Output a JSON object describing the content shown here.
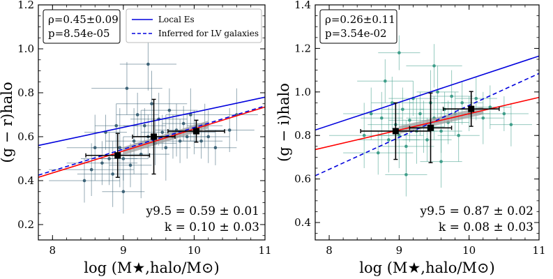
{
  "chart_data": [
    {
      "type": "scatter",
      "panel": "left",
      "xlabel": "log (M★,halo/M⊙)",
      "ylabel": "(g − r)halo",
      "xlim": [
        7.8,
        11.0
      ],
      "ylim": [
        0.13,
        1.2
      ],
      "xticks": [
        8,
        9,
        10,
        11
      ],
      "yticks": [
        0.2,
        0.4,
        0.6,
        0.8,
        1.0,
        1.2
      ],
      "xtick_labels": [
        "8",
        "9",
        "10",
        "11"
      ],
      "ytick_labels": [
        "0.2",
        "0.4",
        "0.6",
        "0.8",
        "1.0",
        "1.2"
      ],
      "stats_box": [
        "ρ=0.45±0.09",
        "p=8.54e-05"
      ],
      "legend": {
        "placement": "top-center",
        "entries": [
          "Local Es",
          "Inferred for LV galaxies"
        ]
      },
      "annotation": [
        "y9.5 = 0.59 ± 0.01",
        "k = 0.10 ± 0.03"
      ],
      "lines": [
        {
          "name": "Local Es",
          "color": "#0000dd",
          "style": "solid",
          "x": [
            7.8,
            11.0
          ],
          "y": [
            0.56,
            0.78
          ]
        },
        {
          "name": "Inferred for LV galaxies",
          "color": "#0000dd",
          "style": "dashed",
          "x": [
            7.8,
            11.0
          ],
          "y": [
            0.425,
            0.74
          ]
        },
        {
          "name": "fit",
          "color": "#ff0000",
          "style": "solid",
          "x": [
            7.8,
            11.0
          ],
          "y": [
            0.415,
            0.735
          ]
        }
      ],
      "point_color": "#3e6478",
      "points": [
        {
          "x": 8.45,
          "y": 0.4,
          "xerr": 0.5,
          "yerr": 0.1
        },
        {
          "x": 8.55,
          "y": 0.45,
          "xerr": 0.6,
          "yerr": 0.12
        },
        {
          "x": 8.6,
          "y": 0.55,
          "xerr": 0.4,
          "yerr": 0.15
        },
        {
          "x": 8.7,
          "y": 0.48,
          "xerr": 0.5,
          "yerr": 0.1
        },
        {
          "x": 8.75,
          "y": 0.62,
          "xerr": 0.3,
          "yerr": 0.08
        },
        {
          "x": 8.8,
          "y": 0.5,
          "xerr": 0.4,
          "yerr": 0.12
        },
        {
          "x": 8.85,
          "y": 0.43,
          "xerr": 0.5,
          "yerr": 0.15
        },
        {
          "x": 8.9,
          "y": 0.65,
          "xerr": 0.3,
          "yerr": 0.1
        },
        {
          "x": 8.95,
          "y": 0.55,
          "xerr": 0.4,
          "yerr": 0.18
        },
        {
          "x": 9.0,
          "y": 0.5,
          "xerr": 0.35,
          "yerr": 0.1
        },
        {
          "x": 9.05,
          "y": 0.82,
          "xerr": 0.5,
          "yerr": 0.12
        },
        {
          "x": 9.1,
          "y": 0.47,
          "xerr": 0.3,
          "yerr": 0.1
        },
        {
          "x": 9.15,
          "y": 0.58,
          "xerr": 0.4,
          "yerr": 0.15
        },
        {
          "x": 9.2,
          "y": 0.7,
          "xerr": 0.3,
          "yerr": 0.1
        },
        {
          "x": 9.25,
          "y": 0.52,
          "xerr": 0.4,
          "yerr": 0.2
        },
        {
          "x": 9.3,
          "y": 0.65,
          "xerr": 0.3,
          "yerr": 0.08
        },
        {
          "x": 9.35,
          "y": 0.6,
          "xerr": 0.35,
          "yerr": 0.1
        },
        {
          "x": 9.4,
          "y": 0.75,
          "xerr": 0.5,
          "yerr": 0.15
        },
        {
          "x": 9.45,
          "y": 0.57,
          "xerr": 0.3,
          "yerr": 0.1
        },
        {
          "x": 9.5,
          "y": 0.68,
          "xerr": 0.4,
          "yerr": 0.12
        },
        {
          "x": 9.55,
          "y": 0.62,
          "xerr": 0.3,
          "yerr": 0.08
        },
        {
          "x": 9.6,
          "y": 0.55,
          "xerr": 0.35,
          "yerr": 0.15
        },
        {
          "x": 9.65,
          "y": 0.72,
          "xerr": 0.4,
          "yerr": 0.1
        },
        {
          "x": 9.7,
          "y": 0.6,
          "xerr": 0.3,
          "yerr": 0.1
        },
        {
          "x": 9.75,
          "y": 0.63,
          "xerr": 0.3,
          "yerr": 0.12
        },
        {
          "x": 9.8,
          "y": 0.58,
          "xerr": 0.25,
          "yerr": 0.1
        },
        {
          "x": 9.85,
          "y": 0.66,
          "xerr": 0.3,
          "yerr": 0.08
        },
        {
          "x": 9.9,
          "y": 0.6,
          "xerr": 0.3,
          "yerr": 0.1
        },
        {
          "x": 9.95,
          "y": 0.7,
          "xerr": 0.35,
          "yerr": 0.12
        },
        {
          "x": 10.0,
          "y": 0.62,
          "xerr": 0.3,
          "yerr": 0.1
        },
        {
          "x": 10.1,
          "y": 0.58,
          "xerr": 0.3,
          "yerr": 0.08
        },
        {
          "x": 10.15,
          "y": 0.65,
          "xerr": 0.25,
          "yerr": 0.1
        },
        {
          "x": 10.2,
          "y": 0.6,
          "xerr": 0.3,
          "yerr": 0.12
        },
        {
          "x": 10.3,
          "y": 0.55,
          "xerr": 0.3,
          "yerr": 0.08
        },
        {
          "x": 10.5,
          "y": 0.63,
          "xerr": 0.35,
          "yerr": 0.1
        },
        {
          "x": 10.6,
          "y": 0.7,
          "xerr": 0.3,
          "yerr": 0.12
        },
        {
          "x": 9.35,
          "y": 0.93,
          "xerr": 0.4,
          "yerr": 0.12
        },
        {
          "x": 9.0,
          "y": 0.35,
          "xerr": 0.3,
          "yerr": 0.1
        }
      ],
      "binned": [
        {
          "x": 8.92,
          "y": 0.515,
          "xerr": 0.45,
          "yerr": 0.1
        },
        {
          "x": 9.43,
          "y": 0.6,
          "xerr": 0.3,
          "yerr": 0.17
        },
        {
          "x": 10.03,
          "y": 0.625,
          "xerr": 0.4,
          "yerr": 0.05
        }
      ]
    },
    {
      "type": "scatter",
      "panel": "right",
      "xlabel": "log (M★,halo/M⊙)",
      "ylabel": "(g − i)halo",
      "xlim": [
        7.8,
        11.0
      ],
      "ylim": [
        0.32,
        1.4
      ],
      "xticks": [
        8,
        9,
        10,
        11
      ],
      "yticks": [
        0.4,
        0.6,
        0.8,
        1.0,
        1.2,
        1.4
      ],
      "xtick_labels": [
        "8",
        "9",
        "10",
        "11"
      ],
      "ytick_labels": [
        "0.4",
        "0.6",
        "0.8",
        "1.0",
        "1.2",
        "1.4"
      ],
      "stats_box": [
        "ρ=0.26±0.11",
        "p=3.54e-02"
      ],
      "annotation": [
        "y9.5 = 0.87 ± 0.02",
        "k = 0.08 ± 0.03"
      ],
      "lines": [
        {
          "name": "Local Es",
          "color": "#0000dd",
          "style": "solid",
          "x": [
            7.8,
            11.0
          ],
          "y": [
            0.825,
            1.165
          ]
        },
        {
          "name": "Inferred for LV galaxies",
          "color": "#0000dd",
          "style": "dashed",
          "x": [
            7.8,
            11.0
          ],
          "y": [
            0.615,
            1.085
          ]
        },
        {
          "name": "fit",
          "color": "#ff0000",
          "style": "solid",
          "x": [
            7.8,
            11.0
          ],
          "y": [
            0.735,
            0.975
          ]
        }
      ],
      "point_color": "#3f9e8a",
      "points": [
        {
          "x": 8.5,
          "y": 0.8,
          "xerr": 0.5,
          "yerr": 0.15
        },
        {
          "x": 8.6,
          "y": 0.9,
          "xerr": 0.4,
          "yerr": 0.12
        },
        {
          "x": 8.7,
          "y": 0.72,
          "xerr": 0.5,
          "yerr": 0.1
        },
        {
          "x": 8.75,
          "y": 0.88,
          "xerr": 0.3,
          "yerr": 0.12
        },
        {
          "x": 8.8,
          "y": 1.05,
          "xerr": 0.4,
          "yerr": 0.1
        },
        {
          "x": 8.85,
          "y": 0.78,
          "xerr": 0.45,
          "yerr": 0.15
        },
        {
          "x": 8.9,
          "y": 0.95,
          "xerr": 0.3,
          "yerr": 0.12
        },
        {
          "x": 8.95,
          "y": 0.85,
          "xerr": 0.4,
          "yerr": 0.1
        },
        {
          "x": 9.0,
          "y": 0.8,
          "xerr": 0.35,
          "yerr": 0.15
        },
        {
          "x": 9.05,
          "y": 0.92,
          "xerr": 0.3,
          "yerr": 0.1
        },
        {
          "x": 9.1,
          "y": 0.75,
          "xerr": 0.4,
          "yerr": 0.12
        },
        {
          "x": 9.15,
          "y": 0.87,
          "xerr": 0.3,
          "yerr": 0.1
        },
        {
          "x": 9.2,
          "y": 0.97,
          "xerr": 0.35,
          "yerr": 0.08
        },
        {
          "x": 9.25,
          "y": 0.82,
          "xerr": 0.3,
          "yerr": 0.15
        },
        {
          "x": 9.3,
          "y": 0.9,
          "xerr": 0.4,
          "yerr": 0.1
        },
        {
          "x": 9.35,
          "y": 0.84,
          "xerr": 0.3,
          "yerr": 0.12
        },
        {
          "x": 9.4,
          "y": 0.78,
          "xerr": 0.35,
          "yerr": 0.1
        },
        {
          "x": 9.45,
          "y": 0.95,
          "xerr": 0.3,
          "yerr": 0.15
        },
        {
          "x": 9.5,
          "y": 0.88,
          "xerr": 0.4,
          "yerr": 0.1
        },
        {
          "x": 9.55,
          "y": 1.0,
          "xerr": 0.3,
          "yerr": 0.12
        },
        {
          "x": 9.6,
          "y": 0.82,
          "xerr": 0.3,
          "yerr": 0.1
        },
        {
          "x": 9.65,
          "y": 0.92,
          "xerr": 0.35,
          "yerr": 0.08
        },
        {
          "x": 9.7,
          "y": 0.86,
          "xerr": 0.3,
          "yerr": 0.1
        },
        {
          "x": 9.75,
          "y": 0.98,
          "xerr": 0.3,
          "yerr": 0.12
        },
        {
          "x": 9.8,
          "y": 0.9,
          "xerr": 0.25,
          "yerr": 0.1
        },
        {
          "x": 9.85,
          "y": 0.8,
          "xerr": 0.3,
          "yerr": 0.12
        },
        {
          "x": 9.9,
          "y": 0.95,
          "xerr": 0.3,
          "yerr": 0.1
        },
        {
          "x": 10.0,
          "y": 0.9,
          "xerr": 0.3,
          "yerr": 0.08
        },
        {
          "x": 10.1,
          "y": 0.97,
          "xerr": 0.3,
          "yerr": 0.1
        },
        {
          "x": 10.2,
          "y": 0.88,
          "xerr": 0.3,
          "yerr": 0.12
        },
        {
          "x": 10.3,
          "y": 0.93,
          "xerr": 0.3,
          "yerr": 0.1
        },
        {
          "x": 10.5,
          "y": 0.9,
          "xerr": 0.35,
          "yerr": 0.08
        },
        {
          "x": 10.6,
          "y": 0.85,
          "xerr": 0.3,
          "yerr": 0.1
        },
        {
          "x": 9.1,
          "y": 0.62,
          "xerr": 0.3,
          "yerr": 0.1
        },
        {
          "x": 9.6,
          "y": 0.68,
          "xerr": 0.3,
          "yerr": 0.12
        },
        {
          "x": 9.5,
          "y": 1.12,
          "xerr": 0.4,
          "yerr": 0.1
        },
        {
          "x": 9.0,
          "y": 1.18,
          "xerr": 0.3,
          "yerr": 0.08
        }
      ],
      "binned": [
        {
          "x": 8.95,
          "y": 0.82,
          "xerr": 0.5,
          "yerr": 0.13
        },
        {
          "x": 9.45,
          "y": 0.835,
          "xerr": 0.3,
          "yerr": 0.16
        },
        {
          "x": 10.03,
          "y": 0.922,
          "xerr": 0.4,
          "yerr": 0.08
        }
      ]
    }
  ]
}
